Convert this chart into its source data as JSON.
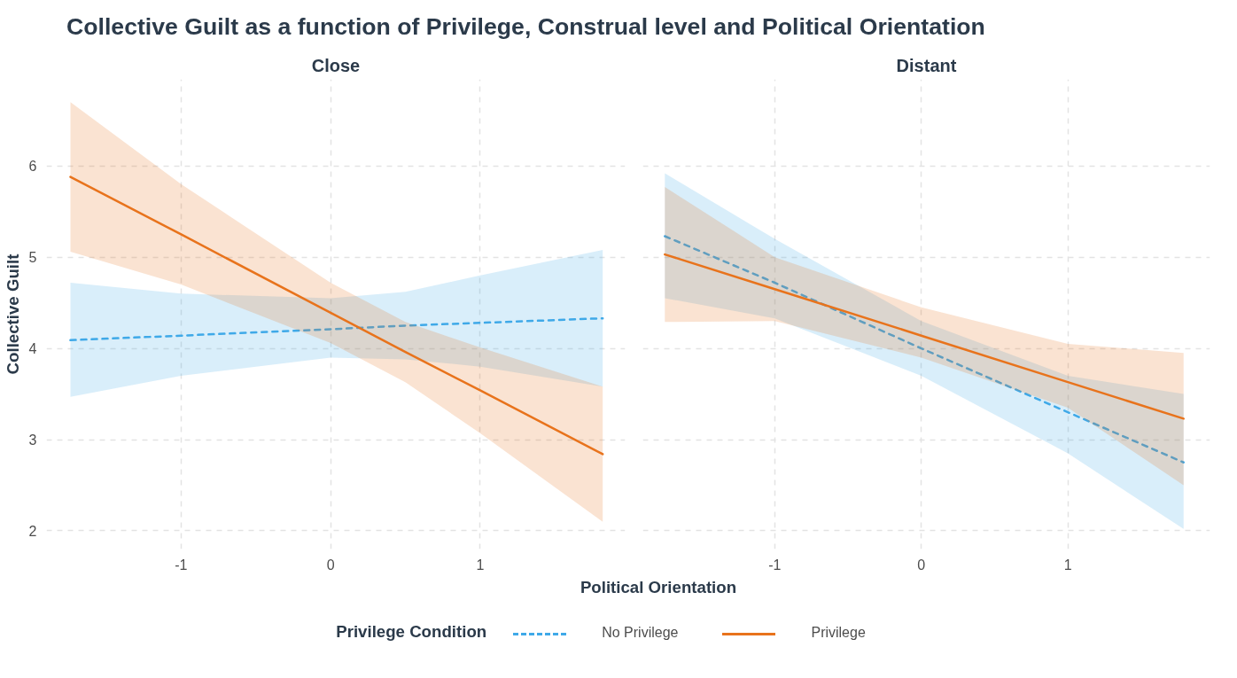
{
  "chart_data": [
    {
      "type": "line",
      "title": "Collective Guilt as a function of Privilege, Construal level and Political Orientation",
      "subtitle": "Close",
      "xlabel": "Political Orientation",
      "ylabel": "Collective Guilt",
      "legend_title": "Privilege Condition",
      "legend": "bottom",
      "grid": true,
      "xlim": [
        -1.9,
        1.97
      ],
      "ylim": [
        1.8,
        6.95
      ],
      "xticks": [
        -1,
        0,
        1
      ],
      "yticks": [
        2,
        3,
        4,
        5,
        6
      ],
      "series": [
        {
          "name": "No Privilege",
          "color": "#3fa9e8",
          "line_style": "dashed",
          "x": [
            -1.74,
            -1,
            0,
            0.5,
            1,
            1.82
          ],
          "values": [
            4.09,
            4.14,
            4.21,
            4.25,
            4.28,
            4.33
          ],
          "lower": [
            3.47,
            3.7,
            3.9,
            3.88,
            3.8,
            3.58
          ],
          "upper": [
            4.72,
            4.6,
            4.55,
            4.62,
            4.8,
            5.08
          ]
        },
        {
          "name": "Privilege",
          "color": "#e8731c",
          "line_style": "solid",
          "x": [
            -1.74,
            -1,
            0,
            0.5,
            1,
            1.82
          ],
          "values": [
            5.88,
            5.25,
            4.39,
            3.96,
            3.54,
            2.84
          ],
          "lower": [
            5.06,
            4.7,
            4.06,
            3.63,
            3.07,
            2.1
          ],
          "upper": [
            6.7,
            5.8,
            4.72,
            4.29,
            4.01,
            3.58
          ]
        }
      ]
    },
    {
      "type": "line",
      "subtitle": "Distant",
      "grid": true,
      "tick_labels": "x",
      "xlim": [
        -1.9,
        1.97
      ],
      "ylim": [
        1.8,
        6.95
      ],
      "xticks": [
        -1,
        0,
        1
      ],
      "yticks": [
        2,
        3,
        4,
        5,
        6
      ],
      "series": [
        {
          "color": "#3fa9e8",
          "line_style": "dashed",
          "x": [
            -1.75,
            -1,
            0,
            1,
            1.79
          ],
          "values": [
            5.23,
            4.72,
            4.0,
            3.3,
            2.75
          ],
          "lower": [
            4.55,
            4.33,
            3.7,
            2.85,
            2.02
          ],
          "upper": [
            5.92,
            5.2,
            4.3,
            3.7,
            3.5
          ]
        },
        {
          "color": "#e8731c",
          "line_style": "solid",
          "x": [
            -1.75,
            -1,
            0,
            1,
            1.79
          ],
          "values": [
            5.03,
            4.65,
            4.14,
            3.63,
            3.23
          ],
          "lower": [
            4.29,
            4.3,
            3.9,
            3.35,
            2.5
          ],
          "upper": [
            5.77,
            5.0,
            4.45,
            4.05,
            3.95
          ]
        }
      ]
    }
  ]
}
